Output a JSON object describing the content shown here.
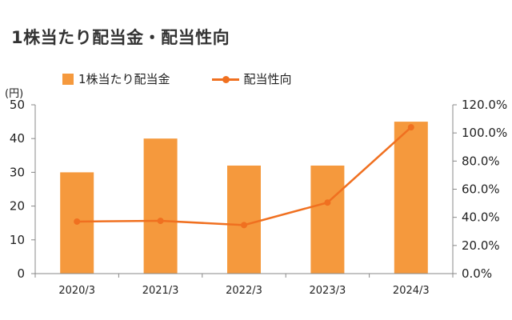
{
  "title": "1株当たり配当金・配当性向",
  "unit_label": "(円)",
  "colors": {
    "bar": "#F5993D",
    "line": "#F07020",
    "axis": "#888888"
  },
  "chart_data": {
    "type": "bar+line",
    "categories": [
      "2020/3",
      "2021/3",
      "2022/3",
      "2023/3",
      "2024/3"
    ],
    "series": [
      {
        "name": "1株当たり配当金",
        "type": "bar",
        "axis": "left",
        "values": [
          30,
          40,
          32,
          32,
          45
        ]
      },
      {
        "name": "配当性向",
        "type": "line",
        "axis": "right",
        "values": [
          37.0,
          37.5,
          34.5,
          50.5,
          104.0
        ]
      }
    ],
    "y_left": {
      "min": 0,
      "max": 50,
      "ticks": [
        "0",
        "10",
        "20",
        "30",
        "40",
        "50"
      ]
    },
    "y_right": {
      "min": 0,
      "max": 120,
      "ticks": [
        "0.0%",
        "20.0%",
        "40.0%",
        "60.0%",
        "80.0%",
        "100.0%",
        "120.0%"
      ]
    },
    "legend": "top-left",
    "grid": false
  }
}
